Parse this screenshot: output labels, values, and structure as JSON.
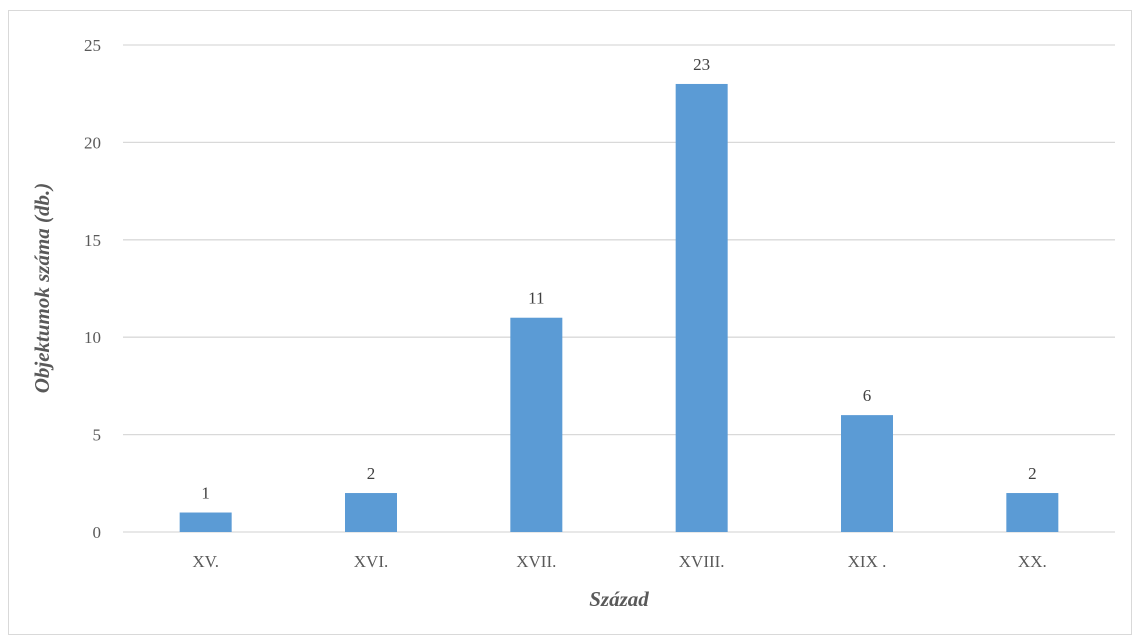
{
  "chart_data": {
    "type": "bar",
    "title": "",
    "xlabel": "Század",
    "ylabel": "Objektumok száma (db.)",
    "categories": [
      "XV.",
      "XVI.",
      "XVII.",
      "XVIII.",
      "XIX .",
      "XX."
    ],
    "values": [
      1,
      2,
      11,
      23,
      6,
      2
    ],
    "data_labels": [
      "1",
      "2",
      "11",
      "23",
      "6",
      "2"
    ],
    "ylim": [
      0,
      25
    ],
    "yticks": [
      0,
      5,
      10,
      15,
      20,
      25
    ],
    "ytick_labels": [
      "0",
      "5",
      "10",
      "15",
      "20",
      "25"
    ],
    "grid": true,
    "legend": "none",
    "bar_color": "#5b9bd5",
    "grid_color": "#d9d9d9"
  }
}
